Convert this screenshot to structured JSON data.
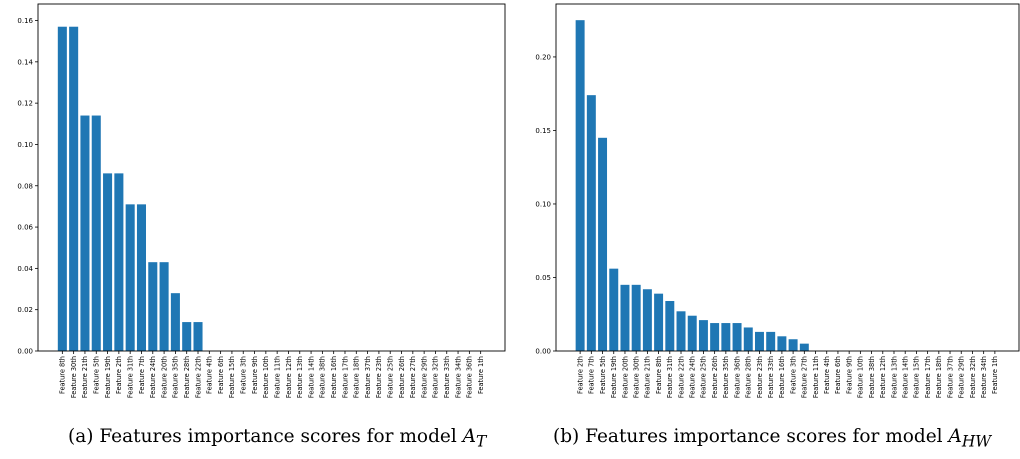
{
  "chart_data": [
    {
      "type": "bar",
      "color": "#1f77b4",
      "ylim": [
        0,
        0.168
      ],
      "yticks": [
        "0.00",
        "0.02",
        "0.04",
        "0.06",
        "0.08",
        "0.10",
        "0.12",
        "0.14",
        "0.16"
      ],
      "categories": [
        "Feature 8th",
        "Feature 30th",
        "Feature 21th",
        "Feature 5th",
        "Feature 19th",
        "Feature 2th",
        "Feature 31th",
        "Feature 7th",
        "Feature 24th",
        "Feature 20th",
        "Feature 35th",
        "Feature 28th",
        "Feature 22th",
        "Feature 4th",
        "Feature 6th",
        "Feature 15th",
        "Feature 3th",
        "Feature 9th",
        "Feature 10th",
        "Feature 11th",
        "Feature 12th",
        "Feature 13th",
        "Feature 14th",
        "Feature 38th",
        "Feature 16th",
        "Feature 17th",
        "Feature 18th",
        "Feature 37th",
        "Feature 23th",
        "Feature 25th",
        "Feature 26th",
        "Feature 27th",
        "Feature 29th",
        "Feature 32th",
        "Feature 33th",
        "Feature 34th",
        "Feature 36th",
        "Feature 1th"
      ],
      "values": [
        0.157,
        0.157,
        0.114,
        0.114,
        0.086,
        0.086,
        0.071,
        0.071,
        0.043,
        0.043,
        0.028,
        0.014,
        0.014,
        0,
        0,
        0,
        0,
        0,
        0,
        0,
        0,
        0,
        0,
        0,
        0,
        0,
        0,
        0,
        0,
        0,
        0,
        0,
        0,
        0,
        0,
        0,
        0,
        0
      ],
      "caption": {
        "prefix": "(a)  Features importance scores for model ",
        "symbol": "A",
        "sub": "T"
      }
    },
    {
      "type": "bar",
      "color": "#1f77b4",
      "ylim": [
        0,
        0.236
      ],
      "yticks": [
        "0.00",
        "0.05",
        "0.10",
        "0.15",
        "0.20"
      ],
      "categories": [
        "Feature 2th",
        "Feature 7th",
        "Feature 5th",
        "Feature 19th",
        "Feature 20th",
        "Feature 30th",
        "Feature 21th",
        "Feature 8th",
        "Feature 31th",
        "Feature 22th",
        "Feature 24th",
        "Feature 25th",
        "Feature 26th",
        "Feature 35th",
        "Feature 36th",
        "Feature 28th",
        "Feature 23th",
        "Feature 33th",
        "Feature 16th",
        "Feature 3th",
        "Feature 27th",
        "Feature 11th",
        "Feature 4th",
        "Feature 6th",
        "Feature 9th",
        "Feature 10th",
        "Feature 38th",
        "Feature 12th",
        "Feature 13th",
        "Feature 14th",
        "Feature 15th",
        "Feature 17th",
        "Feature 18th",
        "Feature 37th",
        "Feature 29th",
        "Feature 32th",
        "Feature 34th",
        "Feature 1th"
      ],
      "values": [
        0.225,
        0.174,
        0.145,
        0.056,
        0.045,
        0.045,
        0.042,
        0.039,
        0.034,
        0.027,
        0.024,
        0.021,
        0.019,
        0.019,
        0.019,
        0.016,
        0.013,
        0.013,
        0.01,
        0.008,
        0.005,
        0,
        0,
        0,
        0,
        0,
        0,
        0,
        0,
        0,
        0,
        0,
        0,
        0,
        0,
        0,
        0,
        0
      ],
      "caption": {
        "prefix": "(b)  Features importance scores for model ",
        "symbol": "A",
        "sub": "HW"
      }
    }
  ]
}
